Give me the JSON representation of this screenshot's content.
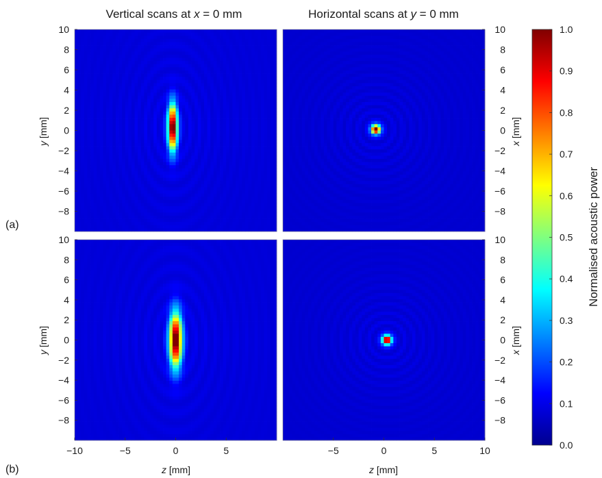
{
  "figure": {
    "column_titles": {
      "left": {
        "prefix": "Vertical scans at ",
        "var": "x",
        "suffix": " = 0 mm"
      },
      "right": {
        "prefix": "Horizontal scans at ",
        "var": "y",
        "suffix": " = 0 mm"
      }
    },
    "panel_tags": [
      "(a)",
      "(b)"
    ],
    "colorbar": {
      "label": "Normalised acoustic power",
      "range": [
        0.0,
        1.0
      ],
      "ticks": [
        "0.0",
        "0.1",
        "0.2",
        "0.3",
        "0.4",
        "0.5",
        "0.6",
        "0.7",
        "0.8",
        "0.9",
        "1.0"
      ],
      "colormap": "jet",
      "colors": [
        "#00008f",
        "#0000ff",
        "#00ffff",
        "#ffff00",
        "#ff0000",
        "#800000"
      ]
    }
  },
  "chart_data": [
    {
      "type": "heatmap",
      "panel": "(a)",
      "column": "left",
      "title": "Vertical scans at x = 0 mm",
      "xlabel": "",
      "ylabel": "y [mm]",
      "ylabel_var": "y",
      "ylabel_unit": " [mm]",
      "xlim": [
        -10,
        10
      ],
      "ylim": [
        -10,
        10
      ],
      "yticks": [
        "10",
        "8",
        "6",
        "4",
        "2",
        "0",
        "−2",
        "−4",
        "−6",
        "−8"
      ],
      "xticks": [],
      "background_level": 0.08,
      "focus": {
        "z": -0.3,
        "y": 0.3,
        "width_z": 0.45,
        "length_y": 2.2,
        "peak": 1.0
      },
      "sidelobes": {
        "fringe_spacing_mm": 0.9,
        "level": 0.05
      }
    },
    {
      "type": "heatmap",
      "panel": "(a)",
      "column": "right",
      "title": "Horizontal scans at y = 0 mm",
      "xlabel": "",
      "ylabel": "x [mm]",
      "ylabel_var": "x",
      "ylabel_unit": " [mm]",
      "xlim": [
        -10,
        10
      ],
      "ylim": [
        -10,
        10
      ],
      "yticks": [
        "10",
        "8",
        "6",
        "4",
        "2",
        "0",
        "−2",
        "−4",
        "−6",
        "−8"
      ],
      "xticks": [],
      "background_level": 0.07,
      "focus": {
        "z": -0.8,
        "x": 0.1,
        "radius": 0.45,
        "peak": 1.0
      },
      "sidelobes": {
        "ring_spacing_mm": 0.9,
        "level": 0.05
      }
    },
    {
      "type": "heatmap",
      "panel": "(b)",
      "column": "left",
      "title": "",
      "xlabel": "z [mm]",
      "xlabel_var": "z",
      "xlabel_unit": " [mm]",
      "ylabel": "y [mm]",
      "ylabel_var": "y",
      "ylabel_unit": " [mm]",
      "xlim": [
        -10,
        10
      ],
      "ylim": [
        -10,
        10
      ],
      "yticks": [
        "10",
        "8",
        "6",
        "4",
        "2",
        "0",
        "−2",
        "−4",
        "−6",
        "−8"
      ],
      "xticks": [
        "−10",
        "−5",
        "0",
        "5"
      ],
      "background_level": 0.08,
      "focus": {
        "z": 0.0,
        "y": 0.0,
        "width_z": 0.6,
        "length_y": 2.6,
        "peak": 1.0
      },
      "sidelobes": {
        "fringe_spacing_mm": 1.0,
        "level": 0.05
      }
    },
    {
      "type": "heatmap",
      "panel": "(b)",
      "column": "right",
      "title": "",
      "xlabel": "z [mm]",
      "xlabel_var": "z",
      "xlabel_unit": " [mm]",
      "ylabel": "x [mm]",
      "ylabel_var": "x",
      "ylabel_unit": " [mm]",
      "xlim": [
        -10,
        10
      ],
      "ylim": [
        -10,
        10
      ],
      "yticks": [
        "10",
        "8",
        "6",
        "4",
        "2",
        "0",
        "−2",
        "−4",
        "−6",
        "−8"
      ],
      "xticks": [
        "−5",
        "0",
        "5",
        "10"
      ],
      "background_level": 0.07,
      "focus": {
        "z": 0.3,
        "x": 0.0,
        "radius": 0.45,
        "peak": 1.0
      },
      "sidelobes": {
        "ring_spacing_mm": 0.9,
        "level": 0.05
      }
    }
  ]
}
